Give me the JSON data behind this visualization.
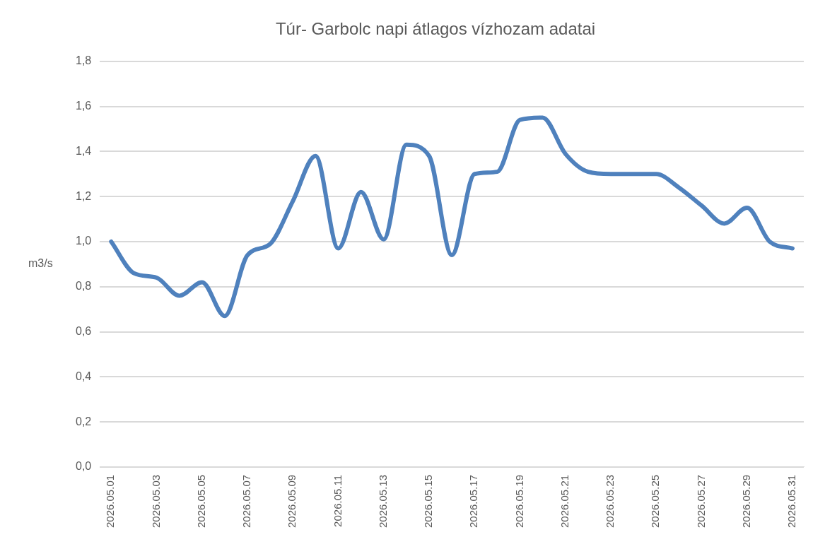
{
  "chart_data": {
    "type": "line",
    "title": "Túr- Garbolc napi átlagos vízhozam adatai",
    "ylabel": "m3/s",
    "categories": [
      "2026.05.01",
      null,
      "2026.05.03",
      null,
      "2026.05.05",
      null,
      "2026.05.07",
      null,
      "2026.05.09",
      null,
      "2026.05.11",
      null,
      "2026.05.13",
      null,
      "2026.05.15",
      null,
      "2026.05.17",
      null,
      "2026.05.19",
      null,
      "2026.05.21",
      null,
      "2026.05.23",
      null,
      "2026.05.25",
      null,
      "2026.05.27",
      null,
      "2026.05.29",
      null,
      "2026.05.31"
    ],
    "series": [
      {
        "color": "#4f81bd",
        "values": [
          1.0,
          0.86,
          0.84,
          0.76,
          0.82,
          0.67,
          0.94,
          0.99,
          1.18,
          1.38,
          0.97,
          1.22,
          1.01,
          1.43,
          1.38,
          0.94,
          1.3,
          1.31,
          1.54,
          1.55,
          1.39,
          1.31,
          1.3,
          1.3,
          1.3,
          1.24,
          1.16,
          1.08,
          1.15,
          1.0,
          0.97
        ]
      }
    ],
    "ylim": [
      0,
      1.8
    ],
    "yticks": [
      {
        "value": 0,
        "label": "0,0"
      },
      {
        "value": 0.2,
        "label": "0,2"
      },
      {
        "value": 0.4,
        "label": "0,4"
      },
      {
        "value": 0.6,
        "label": "0,6"
      },
      {
        "value": 0.8,
        "label": "0,8"
      },
      {
        "value": 1.0,
        "label": "1,0"
      },
      {
        "value": 1.2,
        "label": "1,2"
      },
      {
        "value": 1.4,
        "label": "1,4"
      },
      {
        "value": 1.6,
        "label": "1,6"
      },
      {
        "value": 1.8,
        "label": "1,8"
      }
    ],
    "grid": "y",
    "legend": false,
    "marker": "none",
    "line_style": "solid"
  }
}
